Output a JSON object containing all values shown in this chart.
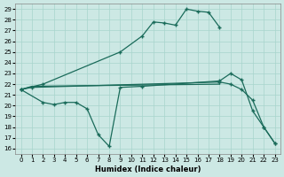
{
  "xlabel": "Humidex (Indice chaleur)",
  "bg_color": "#cce8e4",
  "grid_color": "#a8d4cc",
  "line_color": "#1a6b5a",
  "xlim": [
    -0.5,
    23.5
  ],
  "ylim": [
    15.5,
    29.5
  ],
  "xticks": [
    0,
    1,
    2,
    3,
    4,
    5,
    6,
    7,
    8,
    9,
    10,
    11,
    12,
    13,
    14,
    15,
    16,
    17,
    18,
    19,
    20,
    21,
    22,
    23
  ],
  "yticks": [
    16,
    17,
    18,
    19,
    20,
    21,
    22,
    23,
    24,
    25,
    26,
    27,
    28,
    29
  ],
  "line1_x": [
    0,
    2,
    9,
    11,
    12,
    13,
    14,
    15,
    16,
    17,
    18
  ],
  "line1_y": [
    21.5,
    22.0,
    25.0,
    26.5,
    27.8,
    27.7,
    27.5,
    29.0,
    28.8,
    28.7,
    27.3
  ],
  "line2_x": [
    0,
    2,
    3,
    4,
    5,
    6,
    7,
    8,
    9,
    11,
    18,
    19,
    20,
    21,
    22,
    23
  ],
  "line2_y": [
    21.5,
    20.3,
    20.1,
    20.3,
    20.3,
    19.7,
    17.3,
    16.2,
    21.7,
    21.8,
    22.3,
    23.0,
    22.4,
    19.5,
    18.0,
    16.5
  ],
  "line3_x": [
    0,
    1,
    18
  ],
  "line3_y": [
    21.5,
    21.8,
    22.0
  ],
  "line4_x": [
    0,
    1,
    18,
    19,
    20,
    21,
    22,
    23
  ],
  "line4_y": [
    21.5,
    21.7,
    22.2,
    22.0,
    21.5,
    20.5,
    18.0,
    16.5
  ]
}
